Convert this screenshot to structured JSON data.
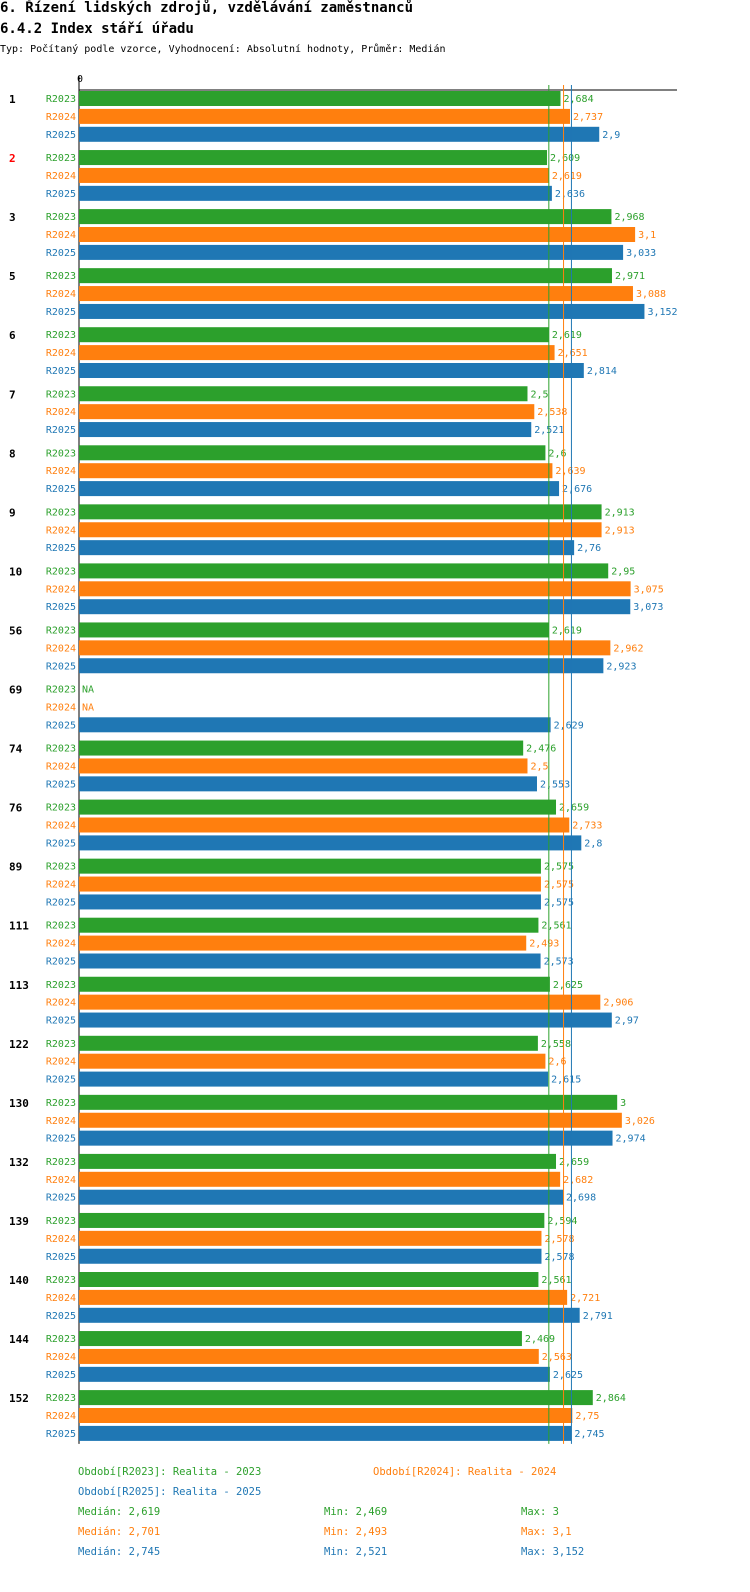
{
  "header": {
    "title": "6. Řízení lidských zdrojů, vzdělávání zaměstnanců",
    "subtitle": "6.4.2 Index stáří úřadu",
    "info": "Typ: Počítaný podle vzorce, Vyhodnocení: Absolutní hodnoty, Průměr: Medián"
  },
  "colors": {
    "R2023": "#2ca02c",
    "R2024": "#ff7f0e",
    "R2025": "#1f77b4",
    "highlight": "#ff0000"
  },
  "chart_data": {
    "type": "bar",
    "orientation": "horizontal",
    "title": "6.4.2 Index stáří úřadu",
    "axis_zero_label": "0",
    "xlim": [
      0,
      3.3
    ],
    "series_names": [
      "R2023",
      "R2024",
      "R2025"
    ],
    "highlight_category": "2",
    "groups": [
      {
        "label": "1",
        "values": [
          2.684,
          2.737,
          2.9
        ],
        "labels": [
          "2,684",
          "2,737",
          "2,9"
        ]
      },
      {
        "label": "2",
        "values": [
          2.609,
          2.619,
          2.636
        ],
        "labels": [
          "2,609",
          "2,619",
          "2,636"
        ]
      },
      {
        "label": "3",
        "values": [
          2.968,
          3.1,
          3.033
        ],
        "labels": [
          "2,968",
          "3,1",
          "3,033"
        ]
      },
      {
        "label": "5",
        "values": [
          2.971,
          3.088,
          3.152
        ],
        "labels": [
          "2,971",
          "3,088",
          "3,152"
        ]
      },
      {
        "label": "6",
        "values": [
          2.619,
          2.651,
          2.814
        ],
        "labels": [
          "2,619",
          "2,651",
          "2,814"
        ]
      },
      {
        "label": "7",
        "values": [
          2.5,
          2.538,
          2.521
        ],
        "labels": [
          "2,5",
          "2,538",
          "2,521"
        ]
      },
      {
        "label": "8",
        "values": [
          2.6,
          2.639,
          2.676
        ],
        "labels": [
          "2,6",
          "2,639",
          "2,676"
        ]
      },
      {
        "label": "9",
        "values": [
          2.913,
          2.913,
          2.76
        ],
        "labels": [
          "2,913",
          "2,913",
          "2,76"
        ]
      },
      {
        "label": "10",
        "values": [
          2.95,
          3.075,
          3.073
        ],
        "labels": [
          "2,95",
          "3,075",
          "3,073"
        ]
      },
      {
        "label": "56",
        "values": [
          2.619,
          2.962,
          2.923
        ],
        "labels": [
          "2,619",
          "2,962",
          "2,923"
        ]
      },
      {
        "label": "69",
        "values": [
          null,
          null,
          2.629
        ],
        "labels": [
          "NA",
          "NA",
          "2,629"
        ]
      },
      {
        "label": "74",
        "values": [
          2.476,
          2.5,
          2.553
        ],
        "labels": [
          "2,476",
          "2,5",
          "2,553"
        ]
      },
      {
        "label": "76",
        "values": [
          2.659,
          2.733,
          2.8
        ],
        "labels": [
          "2,659",
          "2,733",
          "2,8"
        ]
      },
      {
        "label": "89",
        "values": [
          2.575,
          2.575,
          2.575
        ],
        "labels": [
          "2,575",
          "2,575",
          "2,575"
        ]
      },
      {
        "label": "111",
        "values": [
          2.561,
          2.493,
          2.573
        ],
        "labels": [
          "2,561",
          "2,493",
          "2,573"
        ]
      },
      {
        "label": "113",
        "values": [
          2.625,
          2.906,
          2.97
        ],
        "labels": [
          "2,625",
          "2,906",
          "2,97"
        ]
      },
      {
        "label": "122",
        "values": [
          2.558,
          2.6,
          2.615
        ],
        "labels": [
          "2,558",
          "2,6",
          "2,615"
        ]
      },
      {
        "label": "130",
        "values": [
          3.0,
          3.026,
          2.974
        ],
        "labels": [
          "3",
          "3,026",
          "2,974"
        ]
      },
      {
        "label": "132",
        "values": [
          2.659,
          2.682,
          2.698
        ],
        "labels": [
          "2,659",
          "2,682",
          "2,698"
        ]
      },
      {
        "label": "139",
        "values": [
          2.594,
          2.578,
          2.578
        ],
        "labels": [
          "2,594",
          "2,578",
          "2,578"
        ]
      },
      {
        "label": "140",
        "values": [
          2.561,
          2.721,
          2.791
        ],
        "labels": [
          "2,561",
          "2,721",
          "2,791"
        ]
      },
      {
        "label": "144",
        "values": [
          2.469,
          2.563,
          2.625
        ],
        "labels": [
          "2,469",
          "2,563",
          "2,625"
        ]
      },
      {
        "label": "152",
        "values": [
          2.864,
          2.75,
          2.745
        ],
        "labels": [
          "2,864",
          "2,75",
          "2,745"
        ]
      }
    ],
    "reference_lines": [
      {
        "series": "R2023",
        "median": 2.619
      },
      {
        "series": "R2024",
        "median": 2.701
      },
      {
        "series": "R2025",
        "median": 2.745
      }
    ]
  },
  "legend": {
    "periods": [
      "Období[R2023]: Realita - 2023",
      "Období[R2024]: Realita - 2024",
      "Období[R2025]: Realita - 2025"
    ],
    "stats": [
      {
        "median": "Medián: 2,619",
        "min": "Min: 2,469",
        "max": "Max: 3"
      },
      {
        "median": "Medián: 2,701",
        "min": "Min: 2,493",
        "max": "Max: 3,1"
      },
      {
        "median": "Medián: 2,745",
        "min": "Min: 2,521",
        "max": "Max: 3,152"
      }
    ]
  }
}
